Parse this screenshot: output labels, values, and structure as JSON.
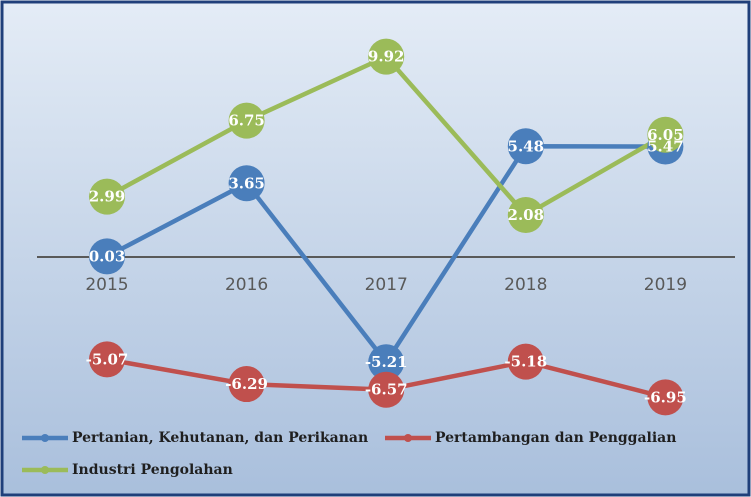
{
  "chart_data": {
    "type": "line",
    "categories": [
      "2015",
      "2016",
      "2017",
      "2018",
      "2019"
    ],
    "series": [
      {
        "name": "Pertanian, Kehutanan, dan Perikanan",
        "color": "#4a7ebb",
        "values": [
          0.03,
          3.65,
          -5.21,
          5.48,
          5.47
        ]
      },
      {
        "name": "Pertambangan dan Penggalian",
        "color": "#c0504d",
        "values": [
          -5.07,
          -6.29,
          -6.57,
          -5.18,
          -6.95
        ]
      },
      {
        "name": "Industri Pengolahan",
        "color": "#9bbb59",
        "values": [
          2.99,
          6.75,
          9.92,
          2.08,
          6.05
        ]
      }
    ],
    "ylim": [
      -8,
      12
    ]
  }
}
